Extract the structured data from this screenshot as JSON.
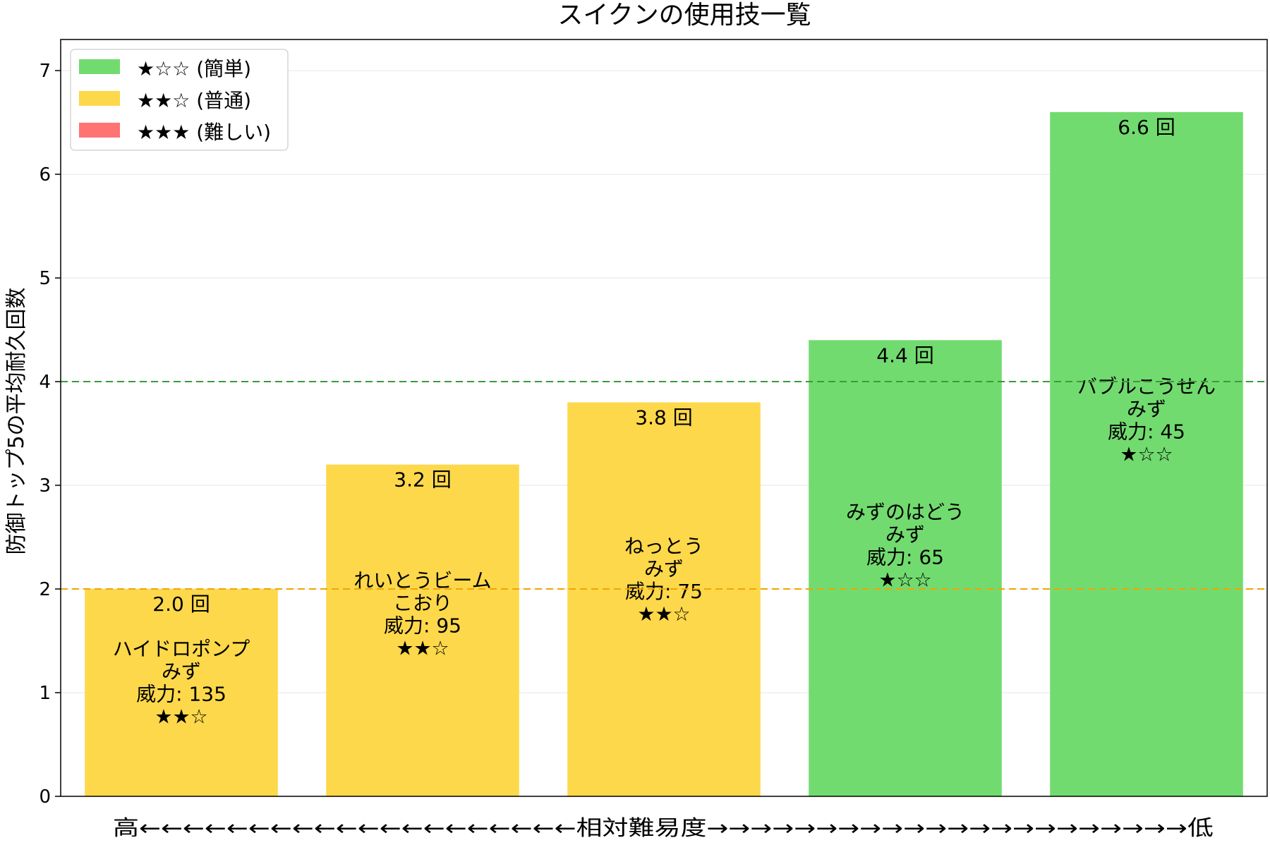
{
  "chart_data": {
    "type": "bar",
    "title": "スイクンの使用技一覧",
    "ylabel": "防御トップ5の平均耐久回数",
    "xlabel": "高←←←←←←←←←←←←←←←←←←←←相対難易度→→→→→→→→→→→→→→→→→→→→→→低",
    "ylim": [
      0,
      7.3
    ],
    "yticks": [
      0,
      1,
      2,
      3,
      4,
      5,
      6,
      7
    ],
    "grid": true,
    "legend_position": "top-left",
    "categories": [
      "ハイドロポンプ",
      "れいとうビーム",
      "ねっとう",
      "みずのはどう",
      "バブルこうせん"
    ],
    "values": [
      2.0,
      3.2,
      3.8,
      4.4,
      6.6
    ],
    "value_labels": [
      "2.0 回",
      "3.2 回",
      "3.8 回",
      "4.4 回",
      "6.6 回"
    ],
    "bars": [
      {
        "name": "ハイドロポンプ",
        "type": "みず",
        "power": "威力: 135",
        "stars": "★★☆",
        "difficulty": "normal"
      },
      {
        "name": "れいとうビーム",
        "type": "こおり",
        "power": "威力: 95",
        "stars": "★★☆",
        "difficulty": "normal"
      },
      {
        "name": "ねっとう",
        "type": "みず",
        "power": "威力: 75",
        "stars": "★★☆",
        "difficulty": "normal"
      },
      {
        "name": "みずのはどう",
        "type": "みず",
        "power": "威力: 65",
        "stars": "★☆☆",
        "difficulty": "easy"
      },
      {
        "name": "バブルこうせん",
        "type": "みず",
        "power": "威力: 45",
        "stars": "★☆☆",
        "difficulty": "easy"
      }
    ],
    "reference_lines": [
      {
        "value": 4,
        "color": "#3a9a3a"
      },
      {
        "value": 2,
        "color": "#f0a500"
      }
    ],
    "legend": [
      {
        "key": "easy",
        "label": "★☆☆ (簡単)",
        "color": "#72db6f"
      },
      {
        "key": "normal",
        "label": "★★☆ (普通)",
        "color": "#fdd84b"
      },
      {
        "key": "hard",
        "label": "★★★ (難しい)",
        "color": "#ff7373"
      }
    ],
    "colors": {
      "easy": "#72db6f",
      "normal": "#fdd84b",
      "hard": "#ff7373"
    }
  }
}
